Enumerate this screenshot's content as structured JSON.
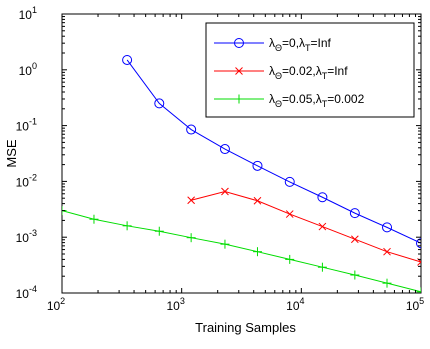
{
  "chart_data": {
    "type": "line",
    "xlabel": "Training Samples",
    "ylabel": "MSE",
    "xscale": "log",
    "yscale": "log",
    "xlim": [
      100,
      100000
    ],
    "ylim": [
      0.0001,
      10
    ],
    "grid": false,
    "legend_placement": "top-right",
    "x_ticks": [
      {
        "base": "10",
        "exp": "2"
      },
      {
        "base": "10",
        "exp": "3"
      },
      {
        "base": "10",
        "exp": "4"
      },
      {
        "base": "10",
        "exp": "5"
      }
    ],
    "y_ticks": [
      {
        "base": "10",
        "exp": "-4"
      },
      {
        "base": "10",
        "exp": "-3"
      },
      {
        "base": "10",
        "exp": "-2"
      },
      {
        "base": "10",
        "exp": "-1"
      },
      {
        "base": "10",
        "exp": "0"
      },
      {
        "base": "10",
        "exp": "1"
      }
    ],
    "series": [
      {
        "legend_parts": [
          [
            "λ",
            ""
          ],
          [
            "Θ",
            "sub"
          ],
          [
            "=0,λ",
            ""
          ],
          [
            "T",
            "sub"
          ],
          [
            "=Inf",
            ""
          ]
        ],
        "color": "#0000ff",
        "marker": "circle",
        "x": [
          350,
          650,
          1200,
          2300,
          4300,
          8000,
          15000,
          28000,
          52000,
          100000
        ],
        "y": [
          1.5,
          0.25,
          0.085,
          0.038,
          0.019,
          0.0098,
          0.0052,
          0.0027,
          0.0015,
          0.00078
        ]
      },
      {
        "legend_parts": [
          [
            "λ",
            ""
          ],
          [
            "Θ",
            "sub"
          ],
          [
            "=0.02,λ",
            ""
          ],
          [
            "T",
            "sub"
          ],
          [
            "=Inf",
            ""
          ]
        ],
        "color": "#ff0000",
        "marker": "x",
        "x": [
          1200,
          2300,
          4300,
          8000,
          15000,
          28000,
          52000,
          100000
        ],
        "y": [
          0.0046,
          0.0066,
          0.0045,
          0.0026,
          0.00155,
          0.00092,
          0.00055,
          0.00036
        ]
      },
      {
        "legend_parts": [
          [
            "λ",
            ""
          ],
          [
            "Θ",
            "sub"
          ],
          [
            "=0.05,λ",
            ""
          ],
          [
            "T",
            "sub"
          ],
          [
            "=0.002",
            ""
          ]
        ],
        "color": "#00dd00",
        "marker": "plus",
        "x": [
          100,
          185,
          350,
          650,
          1200,
          2300,
          4300,
          8000,
          15000,
          28000,
          52000,
          100000
        ],
        "y": [
          0.003,
          0.0021,
          0.0016,
          0.00128,
          0.00098,
          0.00075,
          0.00055,
          0.0004,
          0.00029,
          0.00021,
          0.00015,
          0.000105
        ]
      }
    ]
  }
}
